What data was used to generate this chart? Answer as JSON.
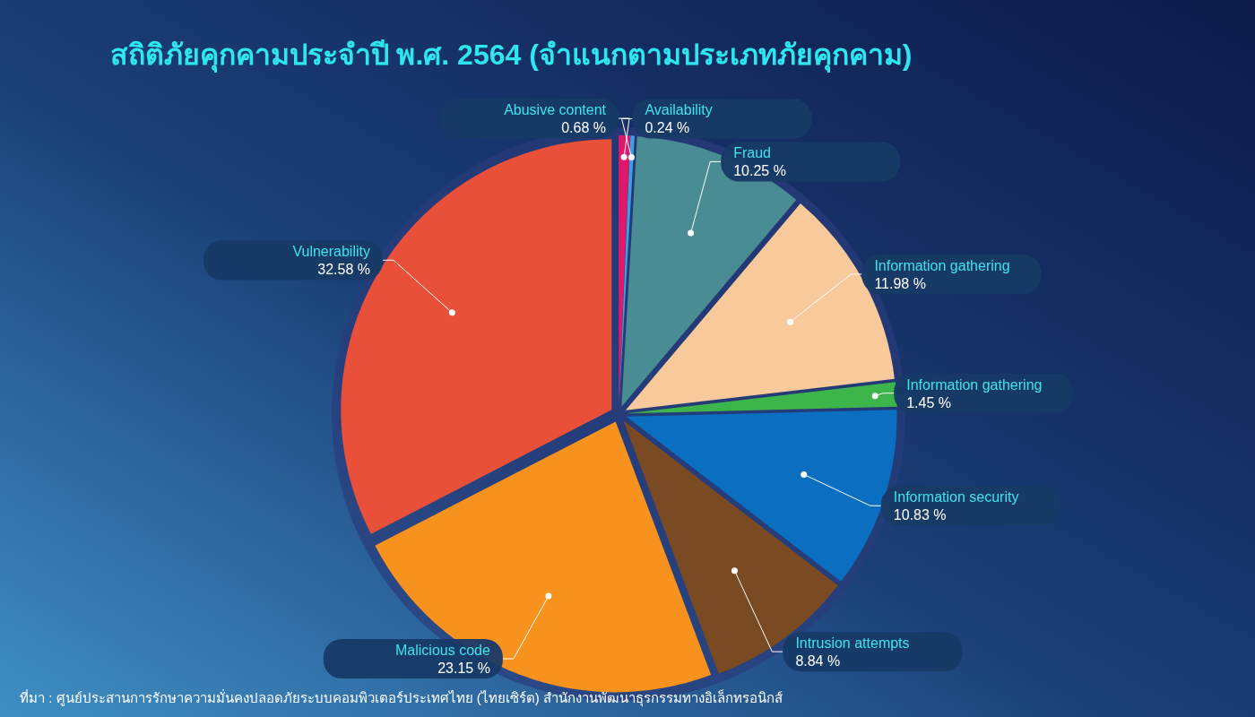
{
  "chart_data": {
    "type": "pie",
    "title": "สถิติภัยคุกคามประจำปี พ.ศ. 2564 (จำแนกตามประเภทภัยคุกคาม)",
    "categories": [
      "Abusive content",
      "Availability",
      "Fraud",
      "Information gathering",
      "Information gathering",
      "Information security",
      "Intrusion attempts",
      "Malicious code",
      "Vulnerability"
    ],
    "values": [
      0.68,
      0.24,
      10.25,
      11.98,
      1.45,
      10.83,
      8.84,
      23.15,
      32.58
    ],
    "colors": [
      "#e0186c",
      "#3aa0e0",
      "#4a8c94",
      "#f8c99a",
      "#3cb54a",
      "#0a6fc0",
      "#7a4a22",
      "#f7921e",
      "#e8503a"
    ],
    "value_labels": [
      "0.68 %",
      "0.24 %",
      "10.25 %",
      "11.98 %",
      "1.45 %",
      "10.83 %",
      "8.84 %",
      "23.15 %",
      "32.58 %"
    ],
    "annotations": [
      "ที่มา : ศูนย์ประสานการรักษาความมั่นคงปลอดภัยระบบคอมพิวเตอร์ประเทศไทย (ไทยเซิร์ต) สำนักงานพัฒนาธุรกรรมทางอิเล็กทรอนิกส์"
    ]
  }
}
